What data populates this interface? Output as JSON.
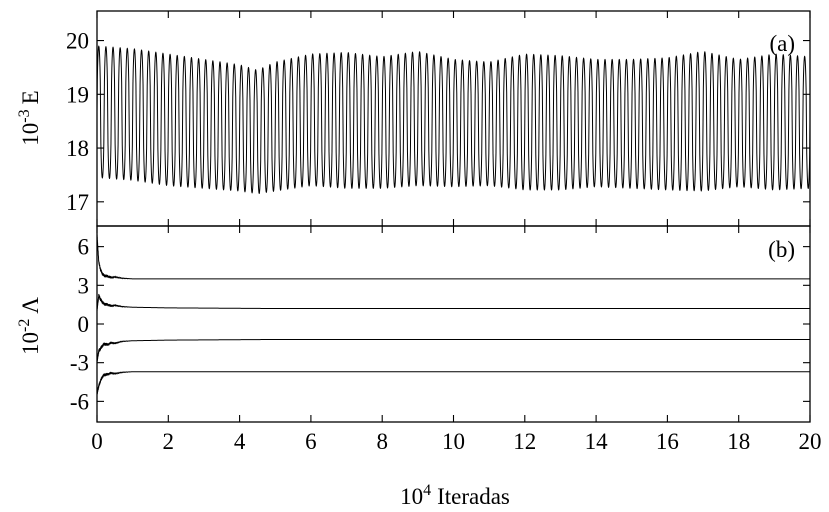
{
  "chart_data": [
    {
      "panel": "(a)",
      "type": "line",
      "title": "",
      "xlabel": "",
      "ylabel": {
        "base": "10",
        "exp": "-3",
        "symbol": "E"
      },
      "xlim": [
        0,
        20
      ],
      "ylim": [
        16.55,
        20.55
      ],
      "x_ticks": [
        0,
        2,
        4,
        6,
        8,
        10,
        12,
        14,
        16,
        18,
        20
      ],
      "y_ticks": [
        17,
        18,
        19,
        20
      ],
      "grid": false,
      "series": [
        {
          "style": "rapid oscillation (~100 cycles over the x range)",
          "oscillation_cycles": 100,
          "upper_envelope": {
            "x": [
              0,
              1,
              2,
              3,
              4,
              4.5,
              5,
              6,
              7,
              8,
              9,
              10,
              11,
              12,
              13,
              14,
              15,
              16,
              17,
              18,
              19,
              20
            ],
            "y": [
              19.9,
              19.85,
              19.75,
              19.65,
              19.55,
              19.45,
              19.6,
              19.75,
              19.78,
              19.7,
              19.8,
              19.65,
              19.6,
              19.75,
              19.72,
              19.65,
              19.65,
              19.68,
              19.8,
              19.65,
              19.75,
              19.7
            ]
          },
          "lower_envelope": {
            "x": [
              0,
              1,
              2,
              3,
              4,
              4.5,
              5,
              6,
              7,
              8,
              9,
              10,
              11,
              12,
              13,
              14,
              15,
              16,
              17,
              18,
              19,
              20
            ],
            "y": [
              17.45,
              17.4,
              17.3,
              17.25,
              17.2,
              17.15,
              17.2,
              17.3,
              17.25,
              17.25,
              17.3,
              17.28,
              17.3,
              17.22,
              17.22,
              17.28,
              17.25,
              17.22,
              17.2,
              17.28,
              17.22,
              17.25
            ]
          }
        }
      ]
    },
    {
      "panel": "(b)",
      "type": "line",
      "title": "",
      "xlabel": {
        "base": "10",
        "exp": "4",
        "word": "Iteradas"
      },
      "ylabel": {
        "base": "10",
        "exp": "-2",
        "symbol": "Λ"
      },
      "xlim": [
        0,
        20
      ],
      "ylim": [
        -7.6,
        7.6
      ],
      "x_ticks": [
        0,
        2,
        4,
        6,
        8,
        10,
        12,
        14,
        16,
        18,
        20
      ],
      "y_ticks": [
        6,
        3,
        0,
        -3,
        -6
      ],
      "grid": false,
      "series": [
        {
          "x": [
            0,
            0.05,
            0.1,
            0.15,
            0.2,
            0.3,
            0.4,
            0.5,
            0.7,
            1,
            2,
            5,
            10,
            20
          ],
          "y": [
            6.9,
            4.8,
            4.2,
            3.9,
            3.75,
            3.7,
            3.6,
            3.65,
            3.55,
            3.5,
            3.5,
            3.5,
            3.5,
            3.5
          ]
        },
        {
          "x": [
            0,
            0.05,
            0.1,
            0.15,
            0.2,
            0.3,
            0.4,
            0.5,
            0.7,
            1,
            2,
            5,
            10,
            20
          ],
          "y": [
            1.1,
            2.2,
            1.9,
            1.7,
            1.55,
            1.5,
            1.4,
            1.45,
            1.35,
            1.3,
            1.25,
            1.2,
            1.2,
            1.2
          ]
        },
        {
          "x": [
            0,
            0.05,
            0.1,
            0.15,
            0.2,
            0.3,
            0.4,
            0.5,
            0.7,
            1,
            2,
            5,
            10,
            20
          ],
          "y": [
            -2.9,
            -2.1,
            -1.9,
            -1.7,
            -1.55,
            -1.6,
            -1.45,
            -1.5,
            -1.35,
            -1.3,
            -1.25,
            -1.2,
            -1.2,
            -1.2
          ]
        },
        {
          "x": [
            0,
            0.05,
            0.1,
            0.15,
            0.2,
            0.3,
            0.4,
            0.5,
            0.7,
            1,
            2,
            5,
            10,
            20
          ],
          "y": [
            -5.4,
            -4.8,
            -4.4,
            -4.1,
            -3.95,
            -3.9,
            -3.8,
            -3.85,
            -3.75,
            -3.7,
            -3.7,
            -3.7,
            -3.7,
            -3.7
          ]
        }
      ]
    }
  ]
}
